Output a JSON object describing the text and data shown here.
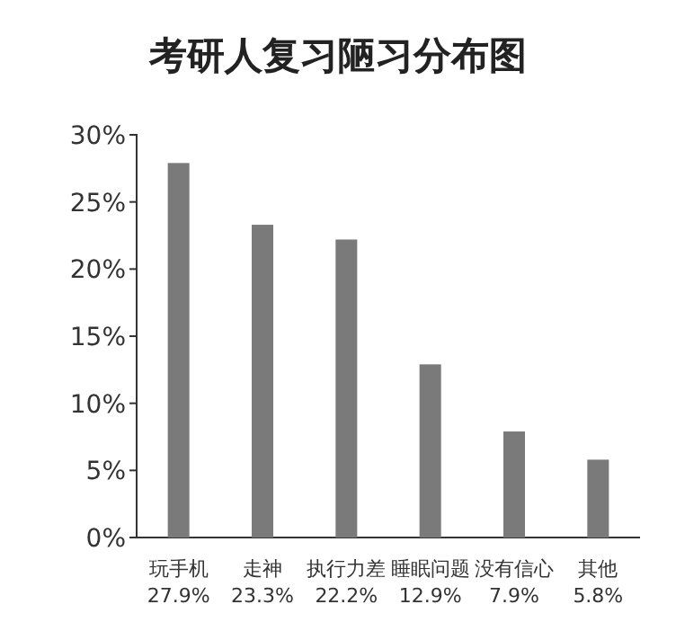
{
  "chart_data": {
    "type": "bar",
    "title": "考研人复习陋习分布图",
    "categories": [
      "玩手机",
      "走神",
      "执行力差",
      "睡眠问题",
      "没有信心",
      "其他"
    ],
    "values": [
      27.9,
      23.3,
      22.2,
      12.9,
      7.9,
      5.8
    ],
    "value_labels": [
      "27.9%",
      "23.3%",
      "22.2%",
      "12.9%",
      "7.9%",
      "5.8%"
    ],
    "color": "#7a7a7a",
    "ylim": [
      0,
      30
    ],
    "yticks": [
      {
        "value": 0,
        "label": "0%"
      },
      {
        "value": 5,
        "label": "5%"
      },
      {
        "value": 10,
        "label": "10%"
      },
      {
        "value": 15,
        "label": "15%"
      },
      {
        "value": 20,
        "label": "20%"
      },
      {
        "value": 25,
        "label": "25%"
      },
      {
        "value": 30,
        "label": "30%"
      }
    ]
  }
}
